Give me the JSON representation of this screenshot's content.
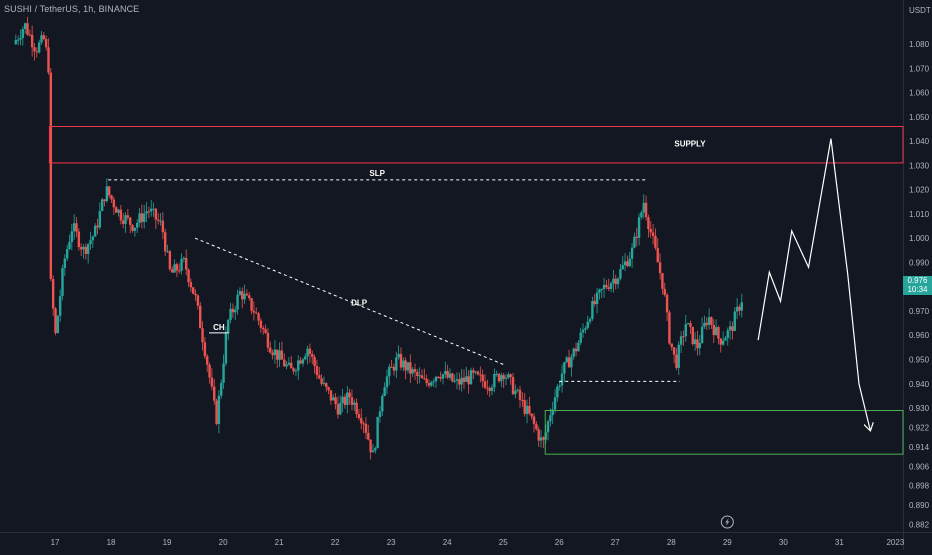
{
  "header": {
    "symbol_line": "SUSHI / TetherUS, 1h, BINANCE",
    "currency": "USDT"
  },
  "price_badge": {
    "price": "0.976",
    "countdown": "10:34",
    "color": "#26a69a"
  },
  "colors": {
    "background": "#131722",
    "bull": "#26a69a",
    "bear": "#ef5350",
    "supply_zone": "#f23645",
    "demand_zone": "#4caf50",
    "drawing": "#ffffff",
    "axis_text": "#b2b5be"
  },
  "chart_data": {
    "type": "candlestick",
    "title": "SUSHI / TetherUS, 1h, BINANCE",
    "xlabel": "",
    "ylabel": "",
    "ylim": [
      0.881,
      1.094
    ],
    "grid": false,
    "x_ticks": [
      "17",
      "18",
      "19",
      "20",
      "21",
      "22",
      "23",
      "24",
      "25",
      "26",
      "27",
      "28",
      "29",
      "30",
      "31",
      "2023"
    ],
    "y_ticks": [
      "1.080",
      "1.070",
      "1.060",
      "1.050",
      "1.040",
      "1.030",
      "1.020",
      "1.010",
      "1.000",
      "0.990",
      "0.980",
      "0.970",
      "0.960",
      "0.950",
      "0.940",
      "0.930",
      "0.922",
      "0.914",
      "0.906",
      "0.898",
      "0.890",
      "0.882"
    ],
    "price_path": [
      {
        "t": 16.3,
        "p": 1.08
      },
      {
        "t": 16.5,
        "p": 1.088
      },
      {
        "t": 16.7,
        "p": 1.078
      },
      {
        "t": 16.85,
        "p": 1.082
      },
      {
        "t": 16.93,
        "p": 1.07
      },
      {
        "t": 16.95,
        "p": 0.985
      },
      {
        "t": 17.05,
        "p": 0.96
      },
      {
        "t": 17.2,
        "p": 0.99
      },
      {
        "t": 17.35,
        "p": 1.005
      },
      {
        "t": 17.55,
        "p": 0.995
      },
      {
        "t": 17.75,
        "p": 1.002
      },
      {
        "t": 17.95,
        "p": 1.02
      },
      {
        "t": 18.2,
        "p": 1.01
      },
      {
        "t": 18.45,
        "p": 1.005
      },
      {
        "t": 18.7,
        "p": 1.012
      },
      {
        "t": 18.95,
        "p": 1.005
      },
      {
        "t": 19.1,
        "p": 0.985
      },
      {
        "t": 19.35,
        "p": 0.99
      },
      {
        "t": 19.55,
        "p": 0.975
      },
      {
        "t": 19.75,
        "p": 0.95
      },
      {
        "t": 19.92,
        "p": 0.925
      },
      {
        "t": 20.0,
        "p": 0.94
      },
      {
        "t": 20.12,
        "p": 0.965
      },
      {
        "t": 20.35,
        "p": 0.978
      },
      {
        "t": 20.6,
        "p": 0.97
      },
      {
        "t": 20.9,
        "p": 0.955
      },
      {
        "t": 21.25,
        "p": 0.945
      },
      {
        "t": 21.55,
        "p": 0.955
      },
      {
        "t": 21.8,
        "p": 0.94
      },
      {
        "t": 22.1,
        "p": 0.93
      },
      {
        "t": 22.3,
        "p": 0.935
      },
      {
        "t": 22.55,
        "p": 0.925
      },
      {
        "t": 22.72,
        "p": 0.91
      },
      {
        "t": 22.9,
        "p": 0.94
      },
      {
        "t": 23.15,
        "p": 0.95
      },
      {
        "t": 23.4,
        "p": 0.945
      },
      {
        "t": 23.65,
        "p": 0.94
      },
      {
        "t": 23.9,
        "p": 0.945
      },
      {
        "t": 24.2,
        "p": 0.94
      },
      {
        "t": 24.5,
        "p": 0.943
      },
      {
        "t": 24.8,
        "p": 0.94
      },
      {
        "t": 25.05,
        "p": 0.945
      },
      {
        "t": 25.3,
        "p": 0.935
      },
      {
        "t": 25.55,
        "p": 0.925
      },
      {
        "t": 25.75,
        "p": 0.915
      },
      {
        "t": 25.9,
        "p": 0.93
      },
      {
        "t": 26.1,
        "p": 0.945
      },
      {
        "t": 26.35,
        "p": 0.955
      },
      {
        "t": 26.6,
        "p": 0.97
      },
      {
        "t": 26.85,
        "p": 0.98
      },
      {
        "t": 27.1,
        "p": 0.985
      },
      {
        "t": 27.35,
        "p": 0.995
      },
      {
        "t": 27.55,
        "p": 1.015
      },
      {
        "t": 27.75,
        "p": 0.995
      },
      {
        "t": 27.9,
        "p": 0.98
      },
      {
        "t": 28.0,
        "p": 0.96
      },
      {
        "t": 28.12,
        "p": 0.948
      },
      {
        "t": 28.3,
        "p": 0.965
      },
      {
        "t": 28.5,
        "p": 0.955
      },
      {
        "t": 28.7,
        "p": 0.968
      },
      {
        "t": 28.9,
        "p": 0.958
      },
      {
        "t": 29.1,
        "p": 0.962
      },
      {
        "t": 29.3,
        "p": 0.975
      }
    ],
    "zones": [
      {
        "label": "SUPPLY",
        "top": 1.046,
        "bottom": 1.031,
        "color": "#f23645"
      },
      {
        "label": "",
        "top": 0.929,
        "bottom": 0.911,
        "color": "#4caf50"
      }
    ],
    "lines": [
      {
        "label": "SLP",
        "from": [
          17.95,
          1.024
        ],
        "to": [
          27.55,
          1.024
        ],
        "style": "dashed"
      },
      {
        "label": "DLP",
        "from": [
          19.5,
          1.0
        ],
        "to": [
          25.0,
          0.948
        ],
        "style": "dashed"
      },
      {
        "label": "",
        "from": [
          26.0,
          0.941
        ],
        "to": [
          28.15,
          0.941
        ],
        "style": "dashed"
      },
      {
        "label": "CH",
        "from": [
          19.75,
          0.961
        ],
        "to": [
          20.1,
          0.961
        ],
        "style": "solid"
      }
    ],
    "projection": {
      "points": [
        [
          29.55,
          0.958
        ],
        [
          29.75,
          0.986
        ],
        [
          29.95,
          0.974
        ],
        [
          30.15,
          1.003
        ],
        [
          30.45,
          0.988
        ],
        [
          30.85,
          1.041
        ],
        [
          31.15,
          0.985
        ],
        [
          31.35,
          0.94
        ],
        [
          31.55,
          0.921
        ]
      ],
      "arrow": true
    },
    "event_marker": {
      "icon": "lightning-icon",
      "t": 29.0
    }
  }
}
